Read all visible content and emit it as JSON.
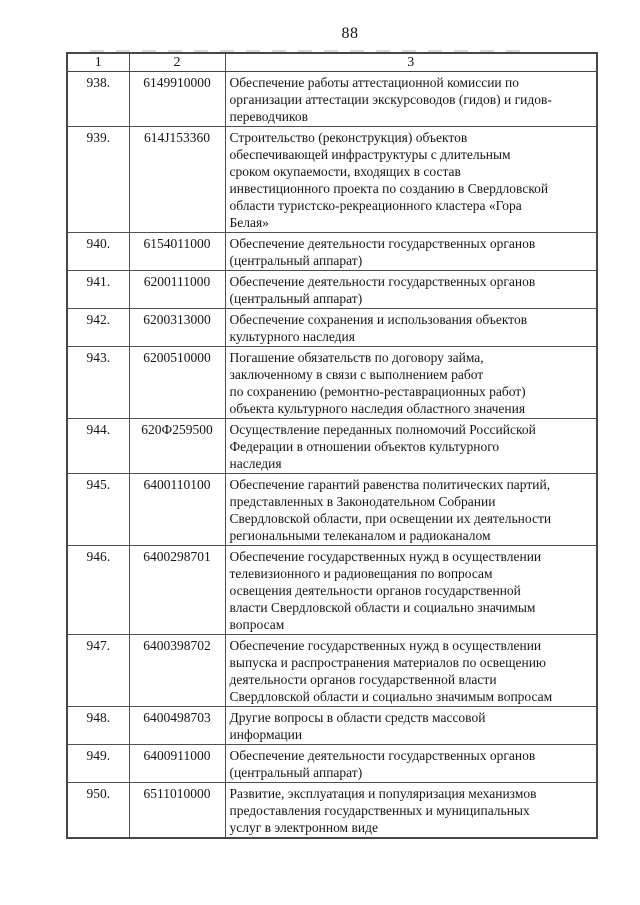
{
  "page_number": "88",
  "colors": {
    "background": "#ffffff",
    "text": "#161616",
    "border": "#4f4f4f"
  },
  "table": {
    "headers": [
      "1",
      "2",
      "3"
    ],
    "rows": [
      {
        "num": "938.",
        "code": "6149910000",
        "desc": "Обеспечение работы аттестационной комиссии по\nорганизации аттестации экскурсоводов (гидов) и гидов-\nпереводчиков"
      },
      {
        "num": "939.",
        "code": "614J153360",
        "desc": "Строительство (реконструкция) объектов\nобеспечивающей инфраструктуры с длительным\nсроком окупаемости, входящих в состав\nинвестиционного проекта по созданию в Свердловской\nобласти туристско-рекреационного кластера «Гора\nБелая»"
      },
      {
        "num": "940.",
        "code": "6154011000",
        "desc": "Обеспечение деятельности государственных органов\n(центральный аппарат)"
      },
      {
        "num": "941.",
        "code": "6200111000",
        "desc": "Обеспечение деятельности государственных органов\n(центральный аппарат)"
      },
      {
        "num": "942.",
        "code": "6200313000",
        "desc": "Обеспечение сохранения и использования объектов\nкультурного наследия"
      },
      {
        "num": "943.",
        "code": "6200510000",
        "desc": "Погашение обязательств по договору займа,\nзаключенному в связи с выполнением работ\nпо сохранению (ремонтно-реставрационных работ)\nобъекта культурного наследия областного значения"
      },
      {
        "num": "944.",
        "code": "620Ф259500",
        "desc": "Осуществление переданных полномочий Российской\nФедерации в отношении объектов культурного\nнаследия"
      },
      {
        "num": "945.",
        "code": "6400110100",
        "desc": "Обеспечение гарантий равенства политических партий,\nпредставленных в Законодательном Собрании\nСвердловской области, при освещении их деятельности\nрегиональными телеканалом и радиоканалом"
      },
      {
        "num": "946.",
        "code": "6400298701",
        "desc": "Обеспечение государственных нужд в осуществлении\nтелевизионного и радиовещания по вопросам\nосвещения деятельности органов государственной\nвласти Свердловской области и социально значимым\nвопросам"
      },
      {
        "num": "947.",
        "code": "6400398702",
        "desc": "Обеспечение государственных нужд в осуществлении\nвыпуска и распространения материалов по освещению\nдеятельности органов государственной власти\nСвердловской области и социально значимым вопросам"
      },
      {
        "num": "948.",
        "code": "6400498703",
        "desc": "Другие вопросы в области средств массовой\nинформации"
      },
      {
        "num": "949.",
        "code": "6400911000",
        "desc": "Обеспечение деятельности государственных органов\n(центральный аппарат)"
      },
      {
        "num": "950.",
        "code": "6511010000",
        "desc": "Развитие, эксплуатация и популяризация механизмов\nпредоставления государственных и муниципальных\nуслуг в электронном виде"
      }
    ]
  }
}
